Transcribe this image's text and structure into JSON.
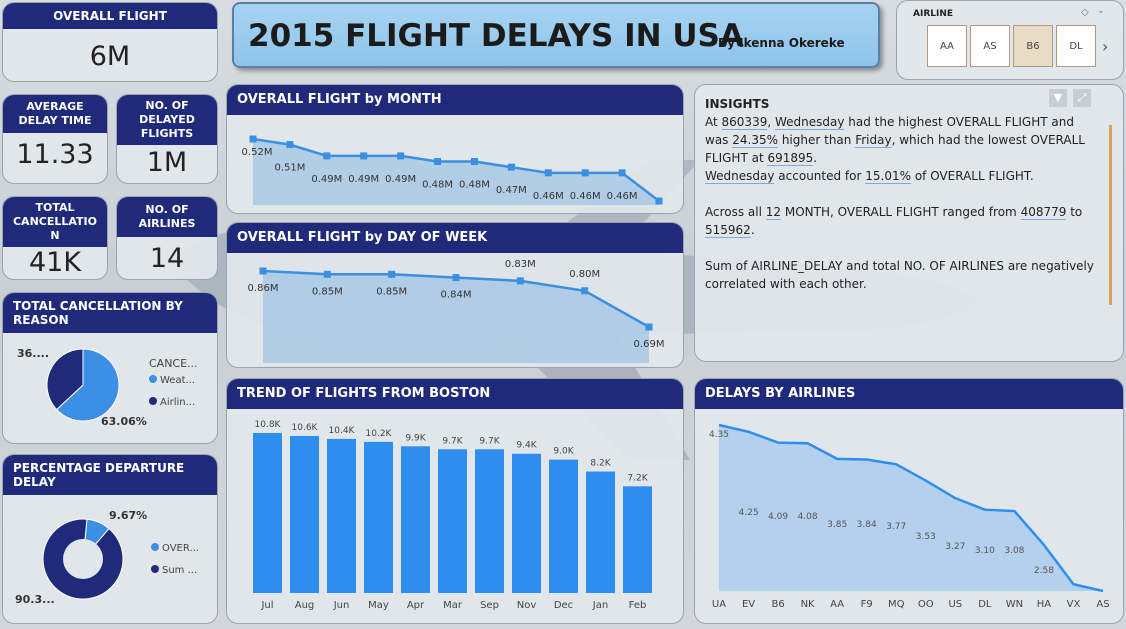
{
  "kpis": {
    "overall_flight": {
      "label": "OVERALL FLIGHT",
      "value": "6M"
    },
    "avg_delay": {
      "label": "AVERAGE DELAY TIME",
      "value": "11.33"
    },
    "delayed_flights": {
      "label": "NO. OF DELAYED FLIGHTS",
      "value": "1M"
    },
    "total_cancel": {
      "label": "TOTAL CANCELLATIO N",
      "value": "41K"
    },
    "no_airlines": {
      "label": "NO. OF AIRLINES",
      "value": "14"
    }
  },
  "title": {
    "main": "2015 FLIGHT DELAYS IN USA",
    "byline": "By Ikenna Okereke"
  },
  "slicer": {
    "label": "AIRLINE",
    "options": [
      "AA",
      "AS",
      "B6",
      "DL"
    ],
    "selected": "B6",
    "next_icon": "chevron-right-icon",
    "eraser_icon": "eraser-icon"
  },
  "insights": {
    "title": "INSIGHTS",
    "p1_a": "At ",
    "p1_v1": "860339",
    "p1_b": ", ",
    "p1_v2": "Wednesday",
    "p1_c": " had the highest OVERALL FLIGHT and was ",
    "p1_v3": "24.35%",
    "p1_d": " higher than ",
    "p1_v4": "Friday",
    "p1_e": ", which had the lowest OVERALL FLIGHT at ",
    "p1_v5": "691895",
    "p1_f": ".",
    "p2_v1": "Wednesday",
    "p2_a": " accounted for ",
    "p2_v2": "15.01%",
    "p2_b": " of OVERALL FLIGHT.",
    "p3_a": "Across all ",
    "p3_v1": "12",
    "p3_b": " MONTH, OVERALL FLIGHT ranged from ",
    "p3_v2": "408779",
    "p3_c": " to ",
    "p3_v3": "515962",
    "p3_d": ".",
    "p4": "Sum of AIRLINE_DELAY and total NO. OF AIRLINES are negatively correlated with each other."
  },
  "chart_data": [
    {
      "id": "by_month",
      "type": "line",
      "title": "OVERALL FLIGHT by MONTH",
      "values": [
        0.52,
        0.51,
        0.49,
        0.49,
        0.49,
        0.48,
        0.48,
        0.47,
        0.46,
        0.46,
        0.46,
        0.41
      ],
      "labels": [
        "0.52M",
        "0.51M",
        "0.49M",
        "0.49M",
        "0.49M",
        "0.48M",
        "0.48M",
        "0.47M",
        "0.46M",
        "0.46M",
        "0.46M",
        ""
      ],
      "color": "#3b8fe0"
    },
    {
      "id": "by_dow",
      "type": "line",
      "title": "OVERALL FLIGHT by DAY OF WEEK",
      "values": [
        0.86,
        0.85,
        0.85,
        0.84,
        0.83,
        0.8,
        0.69
      ],
      "labels": [
        "0.86M",
        "0.85M",
        "0.85M",
        "0.84M",
        "0.83M",
        "0.80M",
        "0.69M"
      ],
      "color": "#3b8fe0"
    },
    {
      "id": "boston",
      "type": "bar",
      "title": "TREND OF FLIGHTS FROM BOSTON",
      "categories": [
        "Jul",
        "Aug",
        "Jun",
        "May",
        "Apr",
        "Mar",
        "Sep",
        "Nov",
        "Dec",
        "Jan",
        "Feb"
      ],
      "values": [
        10.8,
        10.6,
        10.4,
        10.2,
        9.9,
        9.7,
        9.7,
        9.4,
        9.0,
        8.2,
        7.2
      ],
      "labels": [
        "10.8K",
        "10.6K",
        "10.4K",
        "10.2K",
        "9.9K",
        "9.7K",
        "9.7K",
        "9.4K",
        "9.0K",
        "8.2K",
        "7.2K"
      ],
      "color": "#2e8ef0"
    },
    {
      "id": "airlines",
      "type": "area",
      "title": "DELAYS BY AIRLINES",
      "categories": [
        "UA",
        "EV",
        "B6",
        "NK",
        "AA",
        "F9",
        "MQ",
        "OO",
        "US",
        "DL",
        "WN",
        "HA",
        "VX",
        "AS"
      ],
      "values": [
        4.35,
        4.25,
        4.09,
        4.08,
        3.85,
        3.84,
        3.77,
        3.53,
        3.27,
        3.1,
        3.08,
        2.58,
        2.0,
        1.9
      ],
      "labels": [
        "4.35",
        "4.25",
        "4.09",
        "4.08",
        "3.85",
        "3.84",
        "3.77",
        "3.53",
        "3.27",
        "3.10",
        "3.08",
        "2.58",
        "",
        ""
      ],
      "color": "#2e8ef0"
    },
    {
      "id": "cancel_reason",
      "type": "pie",
      "title": "TOTAL CANCELLATION BY REASON",
      "legend_title": "CANCE...",
      "slices": [
        {
          "name": "Weat...",
          "value": 63.06,
          "label": "63.06%",
          "color": "#3d8fe6"
        },
        {
          "name": "Airlin...",
          "value": 36.94,
          "label": "36....",
          "color": "#1f2b7a"
        }
      ]
    },
    {
      "id": "dep_delay",
      "type": "pie",
      "title": "PERCENTAGE DEPARTURE DELAY",
      "slices": [
        {
          "name": "OVER...",
          "value": 9.67,
          "label": "9.67%",
          "color": "#3d8fe6"
        },
        {
          "name": "Sum ...",
          "value": 90.33,
          "label": "90.3...",
          "color": "#1f2b7a"
        }
      ]
    }
  ]
}
